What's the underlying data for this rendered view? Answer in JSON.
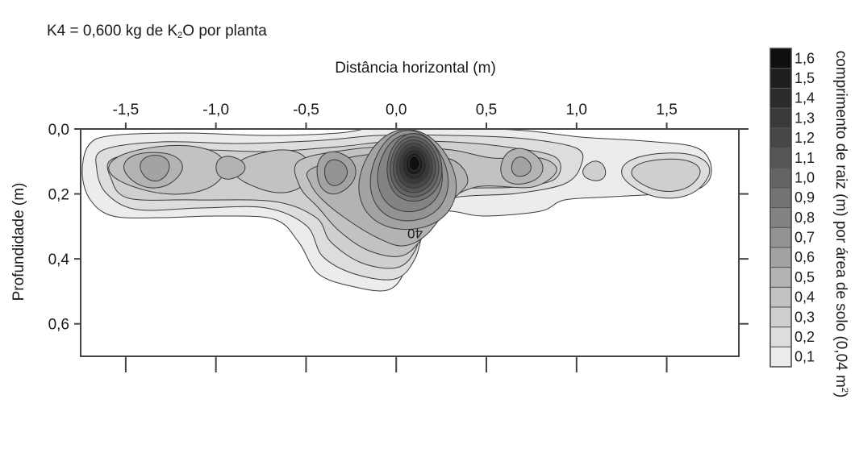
{
  "chart_data": {
    "type": "contour",
    "title_prefix": "K4 = 0,600 kg de K",
    "title_sub": "2",
    "title_suffix": "O por planta",
    "xlabel": "Distância horizontal (m)",
    "ylabel": "Profundidade (m)",
    "colorbar_label_prefix": "comprimento de raiz (m) por área de solo (0,04 m",
    "colorbar_label_sup": "2",
    "colorbar_label_suffix": ")",
    "xlim": [
      -1.75,
      1.9
    ],
    "ylim": [
      0.7,
      0.0
    ],
    "x_ticks": [
      -1.5,
      -1.0,
      -0.5,
      0.0,
      0.5,
      1.0,
      1.5
    ],
    "x_tick_labels": [
      "-1,5",
      "-1,0",
      "-0,5",
      "0,0",
      "0,5",
      "1,0",
      "1,5"
    ],
    "y_ticks": [
      0.0,
      0.2,
      0.4,
      0.6
    ],
    "y_tick_labels": [
      "0,0",
      "0,2",
      "0,4",
      "0,6"
    ],
    "contour_label": "40",
    "levels": [
      0.1,
      0.2,
      0.3,
      0.4,
      0.5,
      0.6,
      0.7,
      0.8,
      0.9,
      1.0,
      1.1,
      1.2,
      1.3,
      1.4,
      1.5,
      1.6
    ],
    "level_labels": [
      "0,1",
      "0,2",
      "0,3",
      "0,4",
      "0,5",
      "0,6",
      "0,7",
      "0,8",
      "0,9",
      "1,0",
      "1,1",
      "1,2",
      "1,3",
      "1,4",
      "1,5",
      "1,6"
    ],
    "level_colors": [
      "#ececec",
      "#dddddd",
      "#cfcfcf",
      "#c2c2c2",
      "#b3b3b3",
      "#a3a3a3",
      "#939393",
      "#838383",
      "#737373",
      "#646464",
      "#555555",
      "#474747",
      "#393939",
      "#2b2b2b",
      "#1e1e1e",
      "#0f0f0f"
    ],
    "peaks": [
      {
        "x": 0.1,
        "y": 0.12,
        "value": 1.6
      },
      {
        "x": -0.3,
        "y": 0.14,
        "value": 0.8
      },
      {
        "x": -1.3,
        "y": 0.12,
        "value": 0.6
      },
      {
        "x": 0.7,
        "y": 0.12,
        "value": 0.6
      },
      {
        "x": -0.9,
        "y": 0.13,
        "value": 0.5
      },
      {
        "x": -0.6,
        "y": 0.14,
        "value": 0.5
      },
      {
        "x": 1.1,
        "y": 0.13,
        "value": 0.35
      },
      {
        "x": 1.5,
        "y": 0.14,
        "value": 0.3
      }
    ],
    "grid": false
  }
}
